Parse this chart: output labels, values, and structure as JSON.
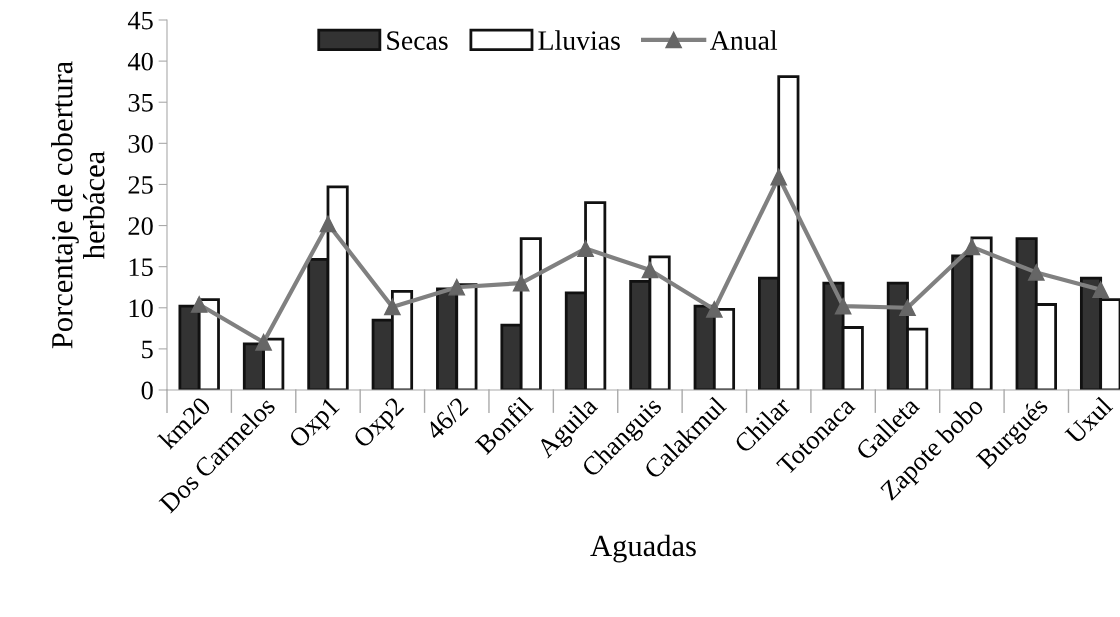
{
  "chart_data": {
    "type": "bar",
    "xlabel": "Aguadas",
    "ylabel": "Porcentaje de cobertura\nherbácea",
    "categories": [
      "km20",
      "Dos Carmelos",
      "Oxp1",
      "Oxp2",
      "46/2",
      "Bonfil",
      "Aguila",
      "Changuis",
      "Calakmul",
      "Chilar",
      "Totonaca",
      "Galleta",
      "Zapote bobo",
      "Burgués",
      "Uxul"
    ],
    "series": [
      {
        "name": "Secas",
        "color": "#333333",
        "values": [
          10.2,
          5.6,
          15.9,
          8.5,
          12.3,
          7.9,
          11.8,
          13.2,
          10.2,
          13.6,
          13.0,
          13.0,
          16.3,
          18.4,
          13.6
        ]
      },
      {
        "name": "Lluvias",
        "color": "#ffffff",
        "values": [
          11.0,
          6.2,
          24.7,
          12.0,
          12.8,
          18.4,
          22.8,
          16.2,
          9.8,
          38.1,
          7.6,
          7.4,
          18.5,
          10.4,
          11.0
        ]
      },
      {
        "name": "Anual",
        "type": "line",
        "color": "#808080",
        "values": [
          10.4,
          5.8,
          20.2,
          10.1,
          12.5,
          13.0,
          17.2,
          14.6,
          9.8,
          25.9,
          10.2,
          10.0,
          17.4,
          14.3,
          12.2
        ]
      }
    ],
    "ylim": [
      0,
      45
    ],
    "yticks": [
      0,
      5,
      10,
      15,
      20,
      25,
      30,
      35,
      40,
      45
    ],
    "grid": false,
    "legend": "top",
    "marker": "triangle"
  }
}
